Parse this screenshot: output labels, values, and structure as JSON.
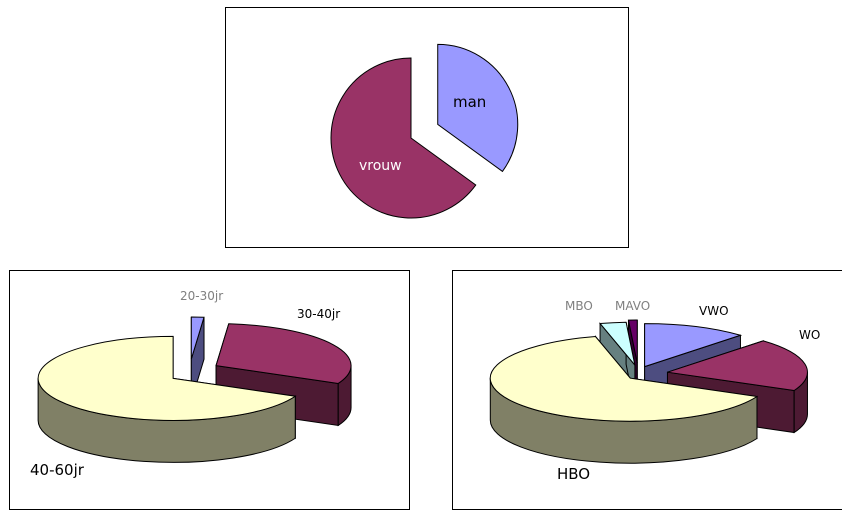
{
  "colors": {
    "blue": "#9999ff",
    "blue_side": "#4d4d80",
    "plum": "#993366",
    "plum_side": "#4d1a33",
    "cream": "#ffffcc",
    "cream_side": "#808066",
    "teal": "#ccffff",
    "teal_side": "#668080",
    "violet": "#660066",
    "violet_side": "#330033",
    "label_grey": "#808080",
    "label_dark": "#000000",
    "label_light": "#ffffff"
  },
  "chart_data": [
    {
      "type": "pie",
      "subtype": "exploded-2d",
      "slices": [
        {
          "label": "man",
          "value": 35,
          "color": "#9999ff"
        },
        {
          "label": "vrouw",
          "value": 65,
          "color": "#993366"
        }
      ]
    },
    {
      "type": "pie",
      "subtype": "exploded-3d",
      "slices": [
        {
          "label": "20-30jr",
          "value": 1.5,
          "color": "#9999ff"
        },
        {
          "label": "30-40jr",
          "value": 30.5,
          "color": "#993366"
        },
        {
          "label": "40-60jr",
          "value": 68,
          "color": "#ffffcc"
        }
      ]
    },
    {
      "type": "pie",
      "subtype": "exploded-3d",
      "slices": [
        {
          "label": "VWO",
          "value": 12,
          "color": "#9999ff"
        },
        {
          "label": "WO",
          "value": 20,
          "color": "#993366"
        },
        {
          "label": "HBO",
          "value": 64,
          "color": "#ffffcc"
        },
        {
          "label": "MBO",
          "value": 3,
          "color": "#ccffff"
        },
        {
          "label": "MAVO",
          "value": 1,
          "color": "#660066"
        }
      ]
    }
  ]
}
